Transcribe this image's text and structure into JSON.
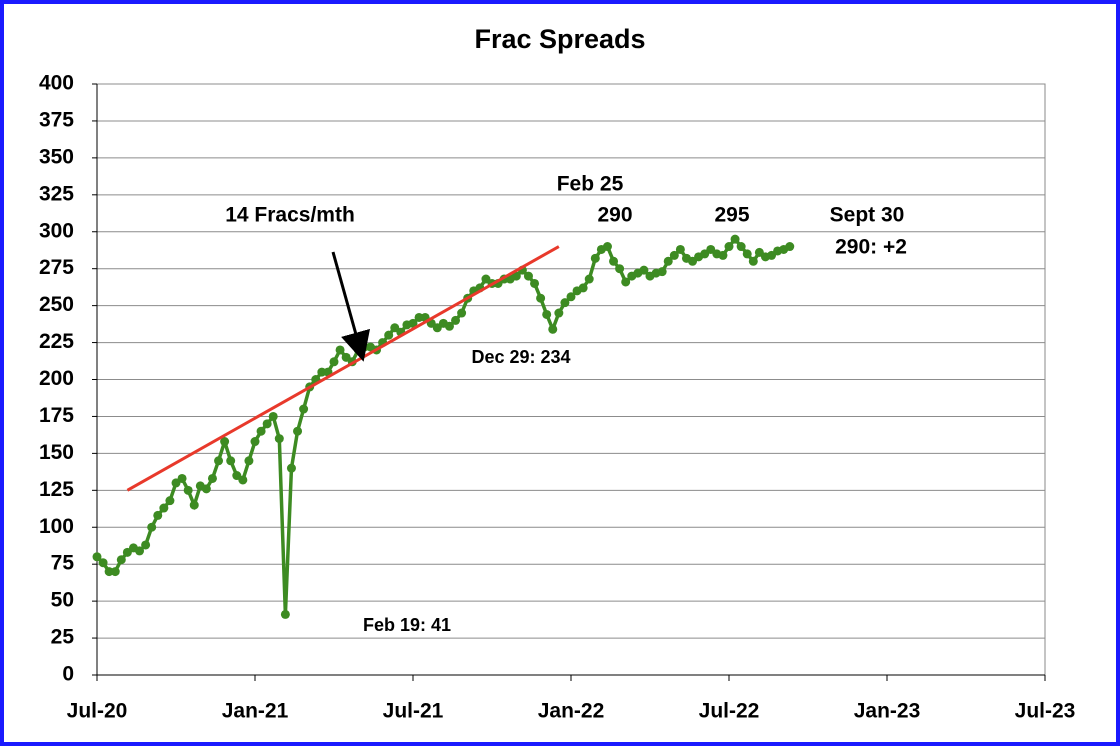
{
  "chart_data": {
    "type": "line",
    "title": "Frac Spreads",
    "values": [
      80,
      76,
      70,
      70,
      78,
      83,
      86,
      84,
      88,
      100,
      108,
      113,
      118,
      130,
      133,
      125,
      115,
      128,
      126,
      133,
      145,
      158,
      145,
      135,
      132,
      145,
      158,
      165,
      170,
      175,
      160,
      41,
      140,
      165,
      180,
      195,
      200,
      205,
      205,
      212,
      220,
      215,
      212,
      220,
      222,
      222,
      220,
      225,
      230,
      235,
      232,
      237,
      238,
      242,
      242,
      238,
      235,
      238,
      236,
      240,
      245,
      255,
      260,
      262,
      268,
      265,
      265,
      268,
      268,
      270,
      274,
      270,
      265,
      255,
      244,
      234,
      245,
      252,
      256,
      260,
      262,
      268,
      282,
      288,
      290,
      280,
      275,
      266,
      270,
      272,
      274,
      270,
      272,
      273,
      280,
      284,
      288,
      282,
      280,
      283,
      285,
      288,
      285,
      284,
      290,
      295,
      290,
      285,
      280,
      286,
      283,
      284,
      287,
      288,
      290
    ],
    "color": "#3d8b22",
    "trendline": {
      "x": [
        5,
        76
      ],
      "y": [
        125,
        290
      ],
      "color": "#e8392b"
    },
    "xlim": [
      0,
      156
    ],
    "xticks": [
      {
        "value": 0,
        "label": "Jul-20"
      },
      {
        "value": 26,
        "label": "Jan-21"
      },
      {
        "value": 52,
        "label": "Jul-21"
      },
      {
        "value": 78,
        "label": "Jan-22"
      },
      {
        "value": 104,
        "label": "Jul-22"
      },
      {
        "value": 130,
        "label": "Jan-23"
      },
      {
        "value": 156,
        "label": "Jul-23"
      }
    ],
    "ylim": [
      0,
      400
    ],
    "yticks": [
      0,
      25,
      50,
      75,
      100,
      125,
      150,
      175,
      200,
      225,
      250,
      275,
      300,
      325,
      350,
      375,
      400
    ],
    "grid": true,
    "annotations": [
      "14 Fracs/mth",
      "Feb 19: 41",
      "Dec 29: 234",
      "Feb 25",
      "290",
      "295",
      "Sept 30",
      "290: +2"
    ]
  }
}
